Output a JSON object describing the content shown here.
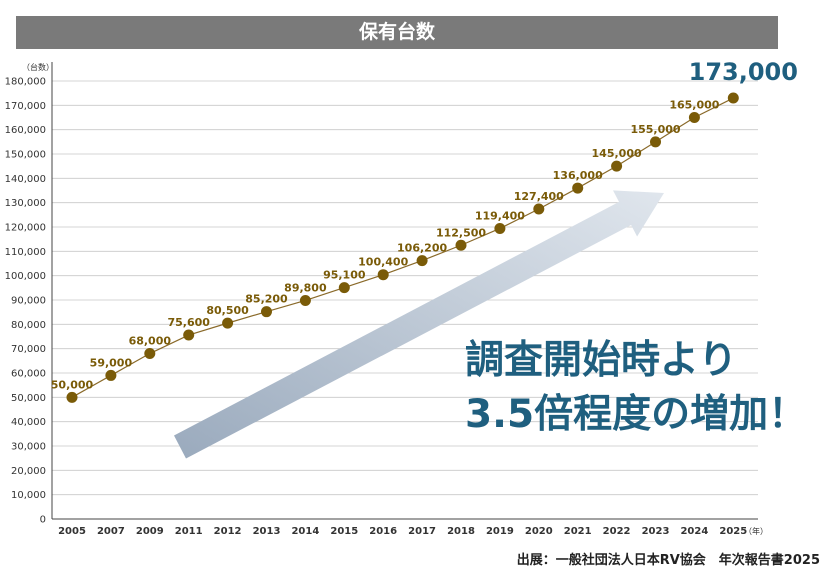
{
  "title": "保有台数",
  "source": "出展：一般社団法人日本RV協会　年次報告書2025",
  "callout": {
    "line1": "調査開始時より",
    "line2": "3.5倍程度の増加！"
  },
  "colors": {
    "title_bg": "#7a7a7a",
    "marker": "#7a5b08",
    "line": "#8a6a2a",
    "label": "#7a5b08",
    "accent": "#1f5f7f",
    "arrow_start": "#9aaabd",
    "arrow_end": "#e0e6ed"
  },
  "chart_data": {
    "type": "line",
    "y_unit": "（台数）",
    "x_unit": "（年）",
    "ylim": [
      0,
      180000
    ],
    "y_ticks": [
      "0",
      "10,000",
      "20,000",
      "30,000",
      "40,000",
      "50,000",
      "60,000",
      "70,000",
      "80,000",
      "90,000",
      "100,000",
      "110,000",
      "120,000",
      "130,000",
      "140,000",
      "150,000",
      "160,000",
      "170,000",
      "180,000"
    ],
    "grid": true,
    "categories": [
      "2005",
      "2007",
      "2009",
      "2011",
      "2012",
      "2013",
      "2014",
      "2015",
      "2016",
      "2017",
      "2018",
      "2019",
      "2020",
      "2021",
      "2022",
      "2023",
      "2024",
      "2025"
    ],
    "values": [
      50000,
      59000,
      68000,
      75600,
      80500,
      85200,
      89800,
      95100,
      100400,
      106200,
      112500,
      119400,
      127400,
      136000,
      145000,
      155000,
      165000,
      173000
    ],
    "labels": [
      "50,000",
      "59,000",
      "68,000",
      "75,600",
      "80,500",
      "85,200",
      "89,800",
      "95,100",
      "100,400",
      "106,200",
      "112,500",
      "119,400",
      "127,400",
      "136,000",
      "145,000",
      "155,000",
      "165,000",
      "173,000"
    ]
  }
}
